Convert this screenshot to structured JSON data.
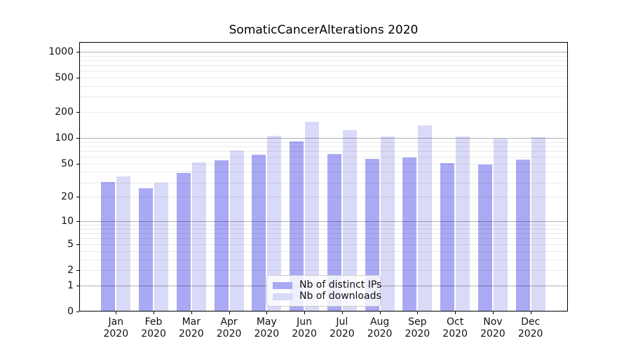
{
  "title": "SomaticCancerAlterations 2020",
  "chart_data": {
    "type": "bar",
    "title": "SomaticCancerAlterations 2020",
    "scale": "log1p",
    "grid": "on",
    "legend_position": "lower center (floating box inside plot)",
    "categories": [
      "Jan",
      "Feb",
      "Mar",
      "Apr",
      "May",
      "Jun",
      "Jul",
      "Aug",
      "Sep",
      "Oct",
      "Nov",
      "Dec"
    ],
    "category_year": "2020",
    "series": [
      {
        "name": "Nb of distinct IPs",
        "color": "#a9a9f4",
        "values": [
          30,
          25,
          38,
          54,
          62,
          89,
          64,
          56,
          58,
          50,
          48,
          55
        ]
      },
      {
        "name": "Nb of downloads",
        "color": "#d9d9f8",
        "values": [
          35,
          29,
          51,
          70,
          104,
          150,
          121,
          102,
          139,
          103,
          97,
          101
        ]
      }
    ],
    "yticks_labeled": [
      1000,
      500,
      200,
      100,
      50,
      20,
      10,
      5,
      2,
      1,
      0
    ],
    "yticks_minor_unlabeled": [
      3,
      4,
      6,
      7,
      8,
      9,
      30,
      40,
      60,
      70,
      80,
      90,
      300,
      400,
      600,
      700,
      800,
      900
    ],
    "ylim": [
      0,
      1290
    ],
    "colors": {
      "major_grid": "#b3b3b3",
      "minor_grid": "#ebebeb",
      "spine": "#000000",
      "background": "#ffffff"
    }
  }
}
